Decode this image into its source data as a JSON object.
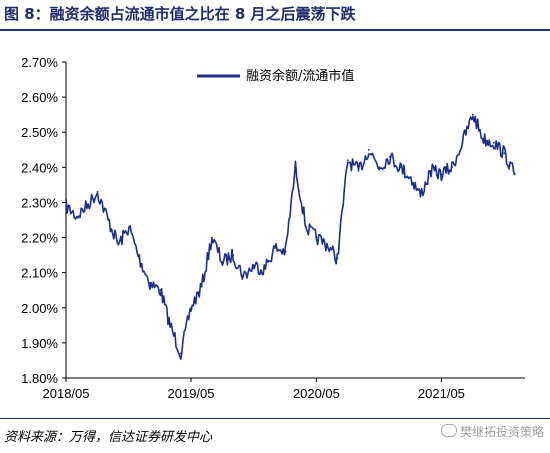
{
  "title": "图 8：融资余额占流通市值之比在 8 月之后震荡下跌",
  "source": "资料来源：万得，信达证券研发中心",
  "watermark": "樊继拓投资策略",
  "colors": {
    "line": "#1f2d8c",
    "title": "#1f2d6b"
  },
  "chart_data": {
    "type": "line",
    "title": "",
    "xlabel": "",
    "ylabel": "",
    "ylim": [
      1.8,
      2.7
    ],
    "yticks": [
      "2.70%",
      "2.60%",
      "2.50%",
      "2.40%",
      "2.30%",
      "2.20%",
      "2.10%",
      "2.00%",
      "1.90%",
      "1.80%"
    ],
    "xticks": [
      "2018/05",
      "2019/05",
      "2020/05",
      "2021/05"
    ],
    "legend": "top-left inside",
    "grid": false,
    "series": [
      {
        "name": "融资余额/流通市值",
        "x": [
          "2018-05",
          "2018-06",
          "2018-07",
          "2018-08",
          "2018-09",
          "2018-10",
          "2018-11",
          "2018-12",
          "2019-01",
          "2019-02",
          "2019-03",
          "2019-04",
          "2019-05",
          "2019-06",
          "2019-07",
          "2019-08",
          "2019-09",
          "2019-10",
          "2019-11",
          "2019-12",
          "2020-01",
          "2020-02",
          "2020-03",
          "2020-04",
          "2020-05",
          "2020-06",
          "2020-07",
          "2020-08",
          "2020-09",
          "2020-10",
          "2020-11",
          "2020-12",
          "2021-01",
          "2021-02",
          "2021-03",
          "2021-04",
          "2021-05",
          "2021-06",
          "2021-07",
          "2021-08",
          "2021-09",
          "2021-10",
          "2021-11",
          "2021-12"
        ],
        "values": [
          2.29,
          2.26,
          2.29,
          2.33,
          2.25,
          2.18,
          2.23,
          2.14,
          2.07,
          2.05,
          1.95,
          1.87,
          2.0,
          2.06,
          2.2,
          2.13,
          2.15,
          2.09,
          2.12,
          2.11,
          2.17,
          2.16,
          2.4,
          2.23,
          2.2,
          2.18,
          2.14,
          2.42,
          2.39,
          2.45,
          2.4,
          2.43,
          2.4,
          2.37,
          2.32,
          2.39,
          2.38,
          2.4,
          2.47,
          2.55,
          2.48,
          2.47,
          2.44,
          2.38
        ]
      }
    ]
  }
}
